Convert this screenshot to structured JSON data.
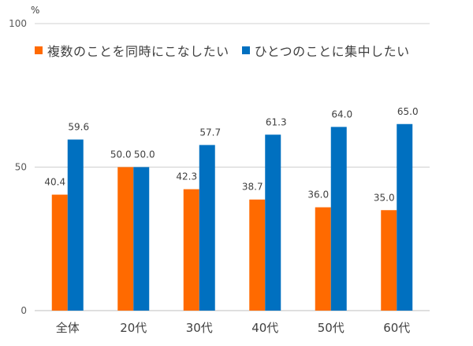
{
  "chart_data": {
    "type": "bar",
    "unit": "%",
    "categories": [
      "全体",
      "20代",
      "30代",
      "40代",
      "50代",
      "60代"
    ],
    "series": [
      {
        "name": "複数のことを同時にこなしたい",
        "color": "#FF6A00",
        "values": [
          40.4,
          50.0,
          42.3,
          38.7,
          36.0,
          35.0
        ]
      },
      {
        "name": "ひとつのことに集中したい",
        "color": "#0070C0",
        "values": [
          59.6,
          50.0,
          57.7,
          61.3,
          64.0,
          65.0
        ]
      }
    ],
    "data_labels": [
      [
        "40.4",
        "50.0",
        "42.3",
        "38.7",
        "36.0",
        "35.0"
      ],
      [
        "59.6",
        "50.0",
        "57.7",
        "61.3",
        "64.0",
        "65.0"
      ]
    ],
    "yticks": [
      "0",
      "50",
      "100"
    ],
    "ylim": [
      0,
      100
    ],
    "grid": true,
    "legend_position": "top"
  }
}
